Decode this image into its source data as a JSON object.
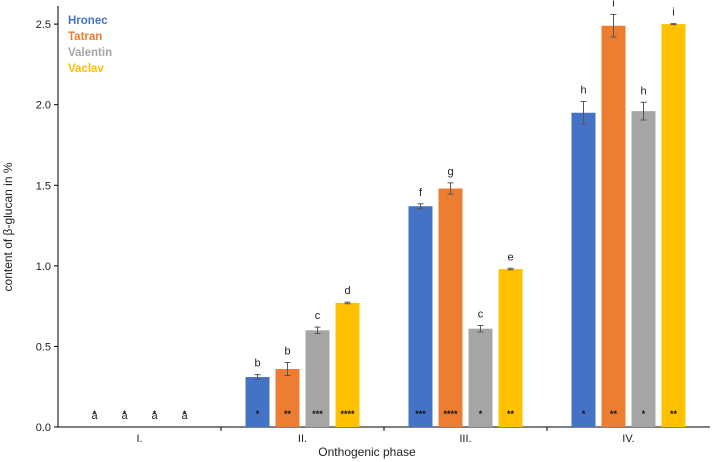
{
  "chart_data": {
    "type": "bar",
    "xlabel": "Onthogenic phase",
    "ylabel": "content of β-glucan in %",
    "ylim": [
      0,
      2.6
    ],
    "yticks": [
      "0.0",
      "0.5",
      "1.0",
      "1.5",
      "2.0",
      "2.5"
    ],
    "categories": [
      "I.",
      "II.",
      "III.",
      "IV."
    ],
    "legend_position": "top-left",
    "series": [
      {
        "name": "Hronec",
        "color": "#4472C4",
        "values": [
          0,
          0.31,
          1.37,
          1.95
        ],
        "errors": [
          0,
          0.015,
          0.015,
          0.07
        ],
        "letters": [
          "a",
          "b",
          "f",
          "h"
        ],
        "stars": [
          "*",
          "*",
          "***",
          "*"
        ]
      },
      {
        "name": "Tatran",
        "color": "#ED7D31",
        "values": [
          0,
          0.36,
          1.48,
          2.49
        ],
        "errors": [
          0,
          0.04,
          0.035,
          0.07
        ],
        "letters": [
          "a",
          "b",
          "g",
          "i"
        ],
        "stars": [
          "*",
          "**",
          "****",
          "**"
        ]
      },
      {
        "name": "Valentin",
        "color": "#A5A5A5",
        "values": [
          0,
          0.6,
          0.61,
          1.96
        ],
        "errors": [
          0,
          0.02,
          0.02,
          0.055
        ],
        "letters": [
          "a",
          "c",
          "c",
          "h"
        ],
        "stars": [
          "*",
          "***",
          "*",
          "*"
        ]
      },
      {
        "name": "Vaclav",
        "color": "#FFC000",
        "values": [
          0,
          0.77,
          0.98,
          2.5
        ],
        "errors": [
          0,
          0.005,
          0.005,
          0.003
        ],
        "letters": [
          "a",
          "d",
          "e",
          "i"
        ],
        "stars": [
          "*",
          "****",
          "**",
          "**"
        ]
      }
    ]
  }
}
